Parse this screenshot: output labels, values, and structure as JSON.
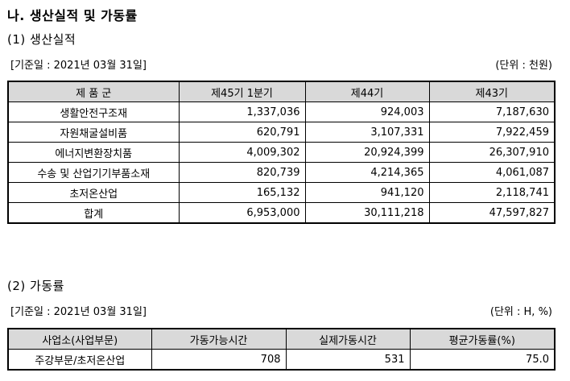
{
  "section_title": "나. 생산실적 및 가동률",
  "production": {
    "heading": "(1) 생산실적",
    "date_label": "[기준일 : 2021년 03월 31일]",
    "unit_label": "(단위 : 천원)",
    "headers": [
      "제 품 군",
      "제45기 1분기",
      "제44기",
      "제43기"
    ],
    "rows": [
      {
        "name": "생활안전구조재",
        "v1": "1,337,036",
        "v2": "924,003",
        "v3": "7,187,630"
      },
      {
        "name": "자원채굴설비품",
        "v1": "620,791",
        "v2": "3,107,331",
        "v3": "7,922,459"
      },
      {
        "name": "에너지변환장치품",
        "v1": "4,009,302",
        "v2": "20,924,399",
        "v3": "26,307,910"
      },
      {
        "name": "수송 및 산업기기부품소재",
        "v1": "820,739",
        "v2": "4,214,365",
        "v3": "4,061,087"
      },
      {
        "name": "초저온산업",
        "v1": "165,132",
        "v2": "941,120",
        "v3": "2,118,741"
      },
      {
        "name": "합계",
        "v1": "6,953,000",
        "v2": "30,111,218",
        "v3": "47,597,827"
      }
    ]
  },
  "utilization": {
    "heading": "(2) 가동률",
    "date_label": "[기준일 : 2021년 03월 31일]",
    "unit_label": "(단위 : H, %)",
    "headers": [
      "사업소(사업부문)",
      "가동가능시간",
      "실제가동시간",
      "평균가동률(%)"
    ],
    "rows": [
      {
        "name": "주강부문/초저온산업",
        "v1": "708",
        "v2": "531",
        "v3": "75.0"
      }
    ]
  }
}
